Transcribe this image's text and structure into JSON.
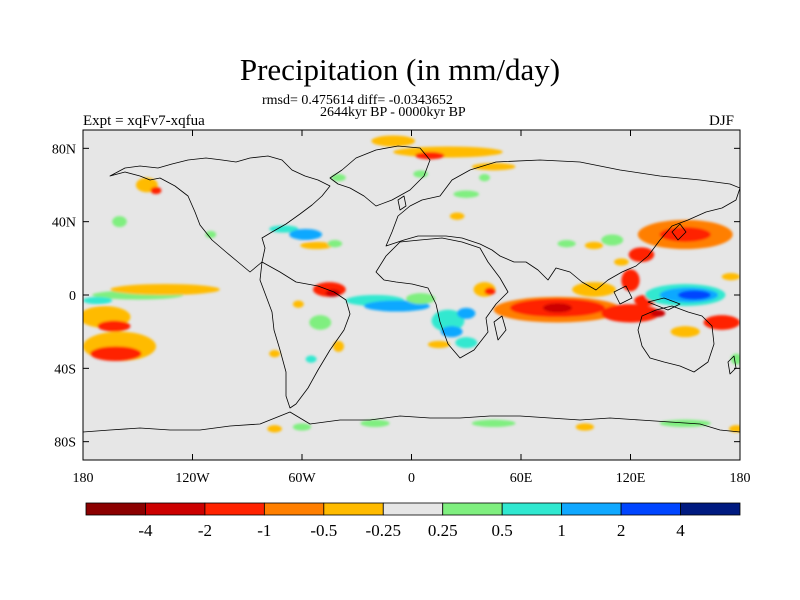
{
  "chart_data": {
    "type": "heatmap",
    "title": "Precipitation (in mm/day)",
    "subtitle_stats": "rmsd= 0.475614 diff= -0.0343652",
    "subtitle_period": "2644kyr BP - 0000kyr BP",
    "left_label": "Expt = xqFv7-xqfua",
    "right_label": "DJF",
    "xlim": [
      -180,
      180
    ],
    "ylim": [
      -90,
      90
    ],
    "x_ticks": [
      {
        "value": -180,
        "label": "180"
      },
      {
        "value": -120,
        "label": "120W"
      },
      {
        "value": -60,
        "label": "60W"
      },
      {
        "value": 0,
        "label": "0"
      },
      {
        "value": 60,
        "label": "60E"
      },
      {
        "value": 120,
        "label": "120E"
      },
      {
        "value": 180,
        "label": "180"
      }
    ],
    "y_ticks": [
      {
        "value": 80,
        "label": "80N"
      },
      {
        "value": 40,
        "label": "40N"
      },
      {
        "value": 0,
        "label": "0"
      },
      {
        "value": -40,
        "label": "40S"
      },
      {
        "value": -80,
        "label": "80S"
      }
    ],
    "background_color": "#e6e6e6",
    "levels": [
      "-4",
      "-2",
      "-1",
      "-0.5",
      "-0.25",
      "0.25",
      "0.5",
      "1",
      "2",
      "4"
    ],
    "colorbar": [
      "#8b0000",
      "#cc0000",
      "#ff2200",
      "#ff7f00",
      "#ffbb00",
      "#e6e6e6",
      "#7fef7f",
      "#30e8d0",
      "#10a8ff",
      "#0045ff",
      "#001a80"
    ],
    "regions": [
      {
        "lon": -168,
        "lat": -12,
        "rx": 14,
        "ry": 6,
        "value": -0.4
      },
      {
        "lon": -163,
        "lat": -17,
        "rx": 9,
        "ry": 3,
        "value": -1.5
      },
      {
        "lon": -150,
        "lat": 0,
        "rx": 25,
        "ry": 2.5,
        "value": 0.4
      },
      {
        "lon": -172,
        "lat": -3,
        "rx": 8,
        "ry": 2,
        "value": 0.7
      },
      {
        "lon": -135,
        "lat": 3,
        "rx": 30,
        "ry": 3,
        "value": -0.4
      },
      {
        "lon": -160,
        "lat": -28,
        "rx": 20,
        "ry": 8,
        "value": -0.5
      },
      {
        "lon": -162,
        "lat": -32,
        "rx": 14,
        "ry": 4,
        "value": -1.2
      },
      {
        "lon": -145,
        "lat": 60,
        "rx": 6,
        "ry": 4,
        "value": -0.4
      },
      {
        "lon": -140,
        "lat": 57,
        "rx": 3,
        "ry": 2,
        "value": -1.5
      },
      {
        "lon": -160,
        "lat": 40,
        "rx": 4,
        "ry": 3,
        "value": 0.4
      },
      {
        "lon": -110,
        "lat": 33,
        "rx": 3,
        "ry": 2,
        "value": 0.4
      },
      {
        "lon": -70,
        "lat": 36,
        "rx": 8,
        "ry": 2,
        "value": 0.6
      },
      {
        "lon": -58,
        "lat": 33,
        "rx": 9,
        "ry": 3,
        "value": 1.1
      },
      {
        "lon": -52,
        "lat": 27,
        "rx": 9,
        "ry": 2,
        "value": -0.4
      },
      {
        "lon": -42,
        "lat": 28,
        "rx": 4,
        "ry": 2,
        "value": 0.4
      },
      {
        "lon": -40,
        "lat": 64,
        "rx": 4,
        "ry": 2,
        "value": 0.4
      },
      {
        "lon": -10,
        "lat": 84,
        "rx": 12,
        "ry": 3,
        "value": -0.5
      },
      {
        "lon": 20,
        "lat": 78,
        "rx": 30,
        "ry": 3,
        "value": -0.5
      },
      {
        "lon": 10,
        "lat": 76,
        "rx": 8,
        "ry": 2,
        "value": -1.5
      },
      {
        "lon": 45,
        "lat": 70,
        "rx": 12,
        "ry": 2,
        "value": -0.5
      },
      {
        "lon": 40,
        "lat": 64,
        "rx": 3,
        "ry": 2,
        "value": 0.4
      },
      {
        "lon": 30,
        "lat": 55,
        "rx": 7,
        "ry": 2,
        "value": 0.4
      },
      {
        "lon": 5,
        "lat": 66,
        "rx": 4,
        "ry": 2,
        "value": 0.4
      },
      {
        "lon": 25,
        "lat": 43,
        "rx": 4,
        "ry": 2,
        "value": -0.5
      },
      {
        "lon": -45,
        "lat": 3,
        "rx": 9,
        "ry": 4,
        "value": -1.2
      },
      {
        "lon": -43,
        "lat": 1,
        "rx": 4,
        "ry": 2,
        "value": -3.0
      },
      {
        "lon": -20,
        "lat": -3,
        "rx": 16,
        "ry": 3,
        "value": 0.7
      },
      {
        "lon": -8,
        "lat": -6,
        "rx": 18,
        "ry": 3,
        "value": 1.2
      },
      {
        "lon": 5,
        "lat": -2,
        "rx": 8,
        "ry": 3,
        "value": 0.4
      },
      {
        "lon": -50,
        "lat": -15,
        "rx": 6,
        "ry": 4,
        "value": 0.4
      },
      {
        "lon": -62,
        "lat": -5,
        "rx": 3,
        "ry": 2,
        "value": -0.4
      },
      {
        "lon": -55,
        "lat": -35,
        "rx": 3,
        "ry": 2,
        "value": 0.6
      },
      {
        "lon": -40,
        "lat": -28,
        "rx": 3,
        "ry": 3,
        "value": -0.4
      },
      {
        "lon": -75,
        "lat": -32,
        "rx": 3,
        "ry": 2,
        "value": -0.4
      },
      {
        "lon": 20,
        "lat": -14,
        "rx": 9,
        "ry": 6,
        "value": 0.5
      },
      {
        "lon": 22,
        "lat": -20,
        "rx": 6,
        "ry": 3,
        "value": 1.1
      },
      {
        "lon": 30,
        "lat": -26,
        "rx": 6,
        "ry": 3,
        "value": 0.6
      },
      {
        "lon": 30,
        "lat": -10,
        "rx": 5,
        "ry": 3,
        "value": 1.3
      },
      {
        "lon": 15,
        "lat": -27,
        "rx": 6,
        "ry": 2,
        "value": -0.4
      },
      {
        "lon": 40,
        "lat": 3,
        "rx": 6,
        "ry": 4,
        "value": -0.4
      },
      {
        "lon": 43,
        "lat": 2,
        "rx": 3,
        "ry": 2,
        "value": -1.2
      },
      {
        "lon": 80,
        "lat": -8,
        "rx": 35,
        "ry": 7,
        "value": -0.6
      },
      {
        "lon": 80,
        "lat": -7,
        "rx": 26,
        "ry": 5,
        "value": -1.5
      },
      {
        "lon": 80,
        "lat": -7,
        "rx": 8,
        "ry": 2.5,
        "value": -2.5
      },
      {
        "lon": 120,
        "lat": -10,
        "rx": 16,
        "ry": 5,
        "value": -1.2
      },
      {
        "lon": 100,
        "lat": 3,
        "rx": 12,
        "ry": 4,
        "value": -0.4
      },
      {
        "lon": 120,
        "lat": 8,
        "rx": 5,
        "ry": 6,
        "value": -1.5
      },
      {
        "lon": 128,
        "lat": -3,
        "rx": 6,
        "ry": 3,
        "value": -1.5
      },
      {
        "lon": 135,
        "lat": -10,
        "rx": 4,
        "ry": 2,
        "value": -3.0
      },
      {
        "lon": 150,
        "lat": 0,
        "rx": 22,
        "ry": 6,
        "value": 0.7
      },
      {
        "lon": 152,
        "lat": 0,
        "rx": 16,
        "ry": 4,
        "value": 1.2
      },
      {
        "lon": 155,
        "lat": 0,
        "rx": 9,
        "ry": 2.5,
        "value": 2.5
      },
      {
        "lon": 170,
        "lat": -15,
        "rx": 10,
        "ry": 4,
        "value": -1.2
      },
      {
        "lon": 150,
        "lat": -20,
        "rx": 8,
        "ry": 3,
        "value": -0.4
      },
      {
        "lon": 150,
        "lat": 33,
        "rx": 26,
        "ry": 8,
        "value": -0.6
      },
      {
        "lon": 150,
        "lat": 33,
        "rx": 14,
        "ry": 4,
        "value": -1.5
      },
      {
        "lon": 126,
        "lat": 22,
        "rx": 7,
        "ry": 4,
        "value": -1.2
      },
      {
        "lon": 115,
        "lat": 18,
        "rx": 4,
        "ry": 2,
        "value": -0.5
      },
      {
        "lon": 110,
        "lat": 30,
        "rx": 6,
        "ry": 3,
        "value": 0.4
      },
      {
        "lon": 100,
        "lat": 27,
        "rx": 5,
        "ry": 2,
        "value": -0.4
      },
      {
        "lon": 85,
        "lat": 28,
        "rx": 5,
        "ry": 2,
        "value": 0.4
      },
      {
        "lon": 178,
        "lat": -35,
        "rx": 3,
        "ry": 3,
        "value": 0.4
      },
      {
        "lon": 175,
        "lat": 10,
        "rx": 5,
        "ry": 2,
        "value": -0.5
      },
      {
        "lon": -75,
        "lat": -73,
        "rx": 4,
        "ry": 2,
        "value": -0.4
      },
      {
        "lon": -60,
        "lat": -72,
        "rx": 5,
        "ry": 2,
        "value": 0.4
      },
      {
        "lon": -20,
        "lat": -70,
        "rx": 8,
        "ry": 2,
        "value": 0.4
      },
      {
        "lon": 45,
        "lat": -70,
        "rx": 12,
        "ry": 2,
        "value": 0.4
      },
      {
        "lon": 95,
        "lat": -72,
        "rx": 5,
        "ry": 2,
        "value": -0.4
      },
      {
        "lon": 150,
        "lat": -70,
        "rx": 14,
        "ry": 2,
        "value": 0.4
      },
      {
        "lon": 178,
        "lat": -73,
        "rx": 4,
        "ry": 2,
        "value": -0.4
      }
    ]
  }
}
